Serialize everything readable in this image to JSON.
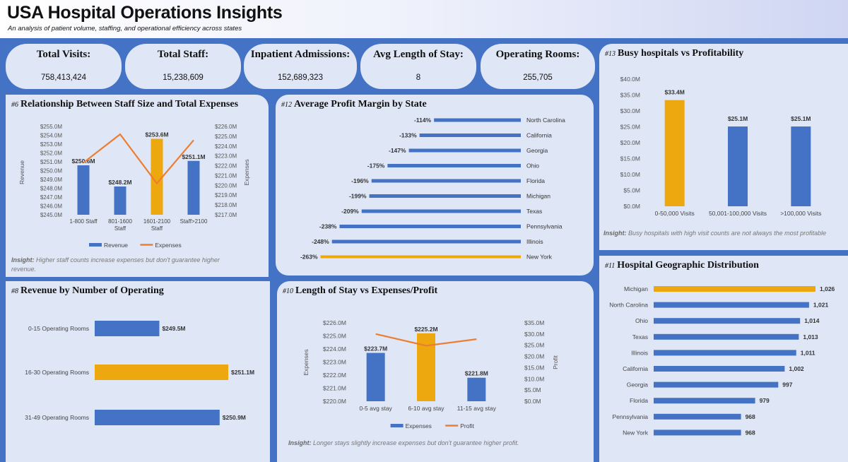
{
  "header": {
    "title": "USA Hospital Operations Insights",
    "subtitle": "An analysis of patient volume, staffing, and operational efficiency across states"
  },
  "kpis": [
    {
      "label": "Total Visits:",
      "value": "758,413,424"
    },
    {
      "label": "Total Staff:",
      "value": "15,238,609"
    },
    {
      "label": "Inpatient Admissions:",
      "value": "152,689,323"
    },
    {
      "label": "Avg Length of Stay:",
      "value": "8"
    },
    {
      "label": "Operating Rooms:",
      "value": "255,705"
    }
  ],
  "colors": {
    "blue": "#4472C4",
    "gold": "#EDA70F",
    "orange": "#ED7D31"
  },
  "panels": {
    "staff": {
      "num": "#6",
      "title": "Relationship Between Staff Size and Total Expenses",
      "insight_label": "Insight:",
      "insight_text": "Higher staff counts increase expenses but don't guarantee higher revenue."
    },
    "margin": {
      "num": "#12",
      "title": "Average Profit Margin by State"
    },
    "busy": {
      "num": "#13",
      "title": "Busy hospitals vs Profitability",
      "insight_label": "Insight:",
      "insight_text": "Busy hospitals with high visit counts are not always the most profitable"
    },
    "oprooms": {
      "num": "#8",
      "title": "Revenue by Number of Operating"
    },
    "stay": {
      "num": "#10",
      "title": "Length of Stay vs Expenses/Profit",
      "insight_label": "Insight:",
      "insight_text": "Longer stays slightly increase expenses but don't guarantee higher profit."
    },
    "geo": {
      "num": "#11",
      "title": "Hospital Geographic Distribution"
    }
  },
  "chart_data": [
    {
      "id": "staff",
      "type": "bar",
      "title": "Relationship Between Staff Size and Total Expenses",
      "categories": [
        "1-800 Staff",
        "801-1600 Staff",
        "1601-2100 Staff",
        "Staff>2100"
      ],
      "series": [
        {
          "name": "Revenue",
          "type": "bar",
          "axis": "left",
          "values": [
            250.6,
            248.2,
            253.6,
            251.1
          ],
          "labels": [
            "$250.6M",
            "$248.2M",
            "$253.6M",
            "$251.1M"
          ]
        },
        {
          "name": "Expenses",
          "type": "line",
          "axis": "right",
          "values": [
            222.3,
            225.2,
            220.2,
            224.6
          ]
        }
      ],
      "highlight_index": 2,
      "ylabel": "Revenue",
      "y2label": "Expenses",
      "ylim": [
        245,
        255
      ],
      "y2lim": [
        217,
        226
      ],
      "yticks": [
        "$255.0M",
        "$254.0M",
        "$253.0M",
        "$252.0M",
        "$251.0M",
        "$250.0M",
        "$249.0M",
        "$248.0M",
        "$247.0M",
        "$246.0M",
        "$245.0M"
      ],
      "y2ticks": [
        "$226.0M",
        "$225.0M",
        "$224.0M",
        "$223.0M",
        "$222.0M",
        "$221.0M",
        "$220.0M",
        "$219.0M",
        "$218.0M",
        "$217.0M"
      ],
      "legend": [
        "Revenue",
        "Expenses"
      ]
    },
    {
      "id": "margin",
      "type": "bar",
      "orientation": "horizontal",
      "title": "Average Profit Margin by State",
      "categories": [
        "North Carolina",
        "California",
        "Georgia",
        "Ohio",
        "Florida",
        "Michigan",
        "Texas",
        "Pennsylvania",
        "Illinois",
        "New York"
      ],
      "values": [
        -114,
        -133,
        -147,
        -175,
        -196,
        -199,
        -209,
        -238,
        -248,
        -263
      ],
      "labels": [
        "-114%",
        "-133%",
        "-147%",
        "-175%",
        "-196%",
        "-199%",
        "-209%",
        "-238%",
        "-248%",
        "-263%"
      ],
      "highlight_index": 9
    },
    {
      "id": "busy",
      "type": "bar",
      "title": "Busy hospitals vs Profitability",
      "categories": [
        "0-50,000 Visits",
        "50,001-100,000 Visits",
        ">100,000 Visits"
      ],
      "values": [
        33.4,
        25.1,
        25.1
      ],
      "labels": [
        "$33.4M",
        "$25.1M",
        "$25.1M"
      ],
      "highlight_index": 0,
      "ylim": [
        0,
        40
      ],
      "yticks": [
        "$40.0M",
        "$35.0M",
        "$30.0M",
        "$25.0M",
        "$20.0M",
        "$15.0M",
        "$10.0M",
        "$5.0M",
        "$0.0M"
      ]
    },
    {
      "id": "oprooms",
      "type": "bar",
      "orientation": "horizontal",
      "title": "Revenue by Number of Operating",
      "categories": [
        "0-15 Operating Rooms",
        "16-30 Operating Rooms",
        "31-49 Operating Rooms"
      ],
      "values": [
        249.5,
        251.1,
        250.9
      ],
      "labels": [
        "$249.5M",
        "$251.1M",
        "$250.9M"
      ],
      "highlight_index": 1
    },
    {
      "id": "stay",
      "type": "bar",
      "title": "Length of Stay vs Expenses/Profit",
      "categories": [
        "0-5 avg stay",
        "6-10 avg stay",
        "11-15 avg stay"
      ],
      "series": [
        {
          "name": "Expenses",
          "type": "bar",
          "axis": "left",
          "values": [
            223.7,
            225.2,
            221.8
          ],
          "labels": [
            "$223.7M",
            "$225.2M",
            "$221.8M"
          ]
        },
        {
          "name": "Profit",
          "type": "line",
          "axis": "right",
          "values": [
            30.0,
            24.8,
            27.7
          ]
        }
      ],
      "highlight_index": 1,
      "ylabel": "Expenses",
      "y2label": "Profit",
      "ylim": [
        220,
        226
      ],
      "y2lim": [
        0,
        35
      ],
      "yticks": [
        "$226.0M",
        "$225.0M",
        "$224.0M",
        "$223.0M",
        "$222.0M",
        "$221.0M",
        "$220.0M"
      ],
      "y2ticks": [
        "$35.0M",
        "$30.0M",
        "$25.0M",
        "$20.0M",
        "$15.0M",
        "$10.0M",
        "$5.0M",
        "$0.0M"
      ],
      "legend": [
        "Expenses",
        "Profit"
      ]
    },
    {
      "id": "geo",
      "type": "bar",
      "orientation": "horizontal",
      "title": "Hospital Geographic Distribution",
      "categories": [
        "Michigan",
        "North Carolina",
        "Ohio",
        "Texas",
        "Illinois",
        "California",
        "Georgia",
        "Florida",
        "Pennsylvania",
        "New York"
      ],
      "values": [
        1026,
        1021,
        1014,
        1013,
        1011,
        1002,
        997,
        979,
        968,
        968
      ],
      "labels": [
        "1,026",
        "1,021",
        "1,014",
        "1,013",
        "1,011",
        "1,002",
        "997",
        "979",
        "968",
        "968"
      ],
      "highlight_index": 0
    }
  ]
}
